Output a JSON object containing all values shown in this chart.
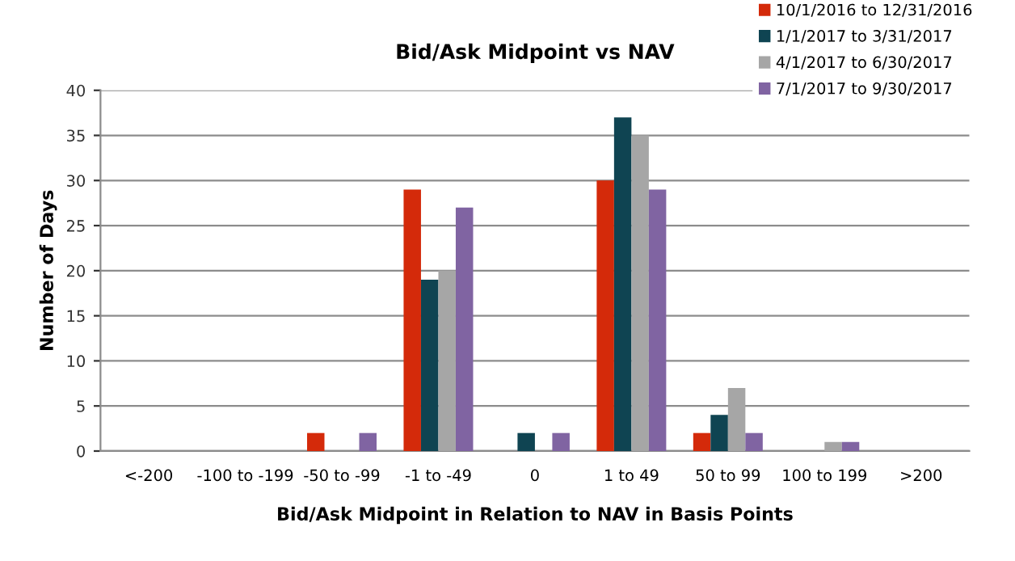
{
  "chart_data": {
    "type": "bar",
    "title": "Bid/Ask Midpoint vs NAV",
    "xlabel": "Bid/Ask Midpoint in Relation to NAV in Basis Points",
    "ylabel": "Number of Days",
    "categories": [
      "<-200",
      "-100 to -199",
      "-50 to -99",
      "-1 to -49",
      "0",
      "1 to 49",
      "50 to 99",
      "100 to 199",
      ">200"
    ],
    "series": [
      {
        "name": "10/1/2016 to 12/31/2016",
        "color": "#d42a0a",
        "values": [
          0,
          0,
          2,
          29,
          0,
          30,
          2,
          0,
          0
        ]
      },
      {
        "name": "1/1/2017 to 3/31/2017",
        "color": "#0f4452",
        "values": [
          0,
          0,
          0,
          19,
          2,
          37,
          4,
          0,
          0
        ]
      },
      {
        "name": "4/1/2017 to 6/30/2017",
        "color": "#a6a6a6",
        "values": [
          0,
          0,
          0,
          20,
          0,
          35,
          7,
          1,
          0
        ]
      },
      {
        "name": "7/1/2017 to 9/30/2017",
        "color": "#8064a2",
        "values": [
          0,
          0,
          2,
          27,
          2,
          29,
          2,
          1,
          0
        ]
      }
    ],
    "ylim": [
      0,
      40
    ],
    "yticks": [
      0,
      5,
      10,
      15,
      20,
      25,
      30,
      35,
      40
    ],
    "grid": "y",
    "legend": "top right"
  }
}
